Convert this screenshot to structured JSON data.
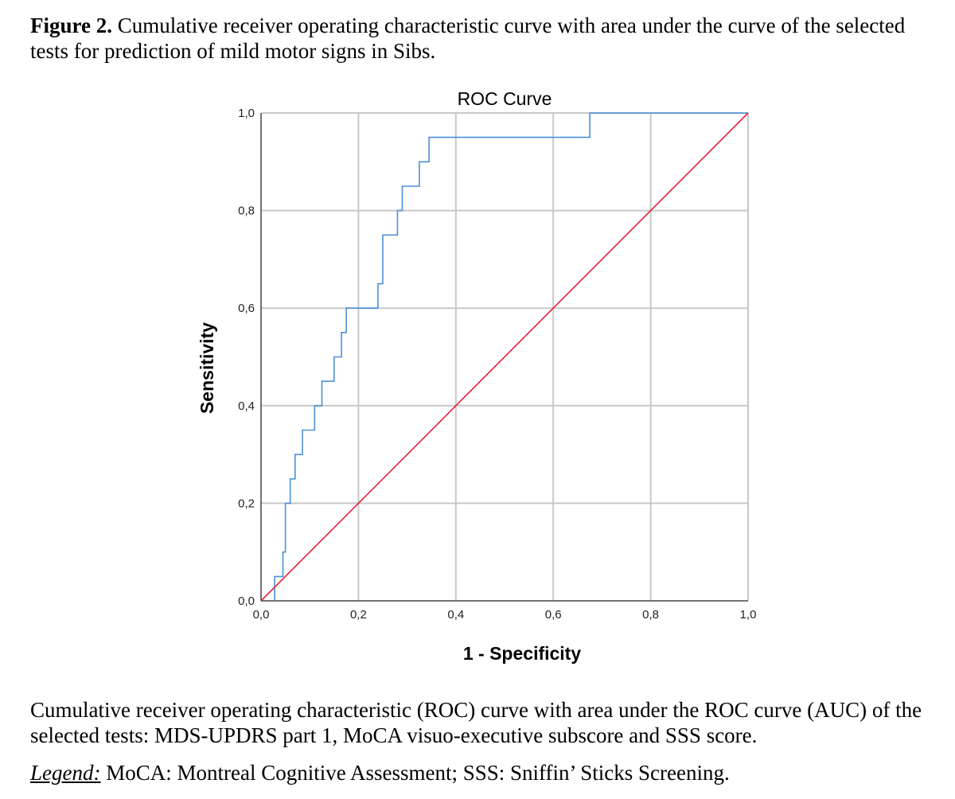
{
  "figure": {
    "label": "Figure 2.",
    "caption": " Cumulative receiver operating characteristic curve with area under the curve of the selected tests for prediction of mild motor signs in Sibs."
  },
  "chart_data": {
    "type": "line",
    "title": "ROC Curve",
    "xlabel": "1 - Specificity",
    "ylabel": "Sensitivity",
    "xlim": [
      0,
      1
    ],
    "ylim": [
      0,
      1
    ],
    "xticks": [
      "0,0",
      "0,2",
      "0,4",
      "0,6",
      "0,8",
      "1,0"
    ],
    "yticks": [
      "0,0",
      "0,2",
      "0,4",
      "0,6",
      "0,8",
      "1,0"
    ],
    "grid": true,
    "series": [
      {
        "color": "#4a90d9",
        "x": [
          0.028,
          0.028,
          0.045,
          0.045,
          0.05,
          0.05,
          0.06,
          0.06,
          0.07,
          0.07,
          0.085,
          0.085,
          0.11,
          0.11,
          0.125,
          0.125,
          0.15,
          0.15,
          0.165,
          0.165,
          0.175,
          0.175,
          0.24,
          0.24,
          0.25,
          0.25,
          0.28,
          0.28,
          0.29,
          0.29,
          0.325,
          0.325,
          0.345,
          0.345,
          0.675,
          0.675,
          1.0
        ],
        "y": [
          0.0,
          0.05,
          0.05,
          0.1,
          0.1,
          0.2,
          0.2,
          0.25,
          0.25,
          0.3,
          0.3,
          0.35,
          0.35,
          0.4,
          0.4,
          0.45,
          0.45,
          0.5,
          0.5,
          0.55,
          0.55,
          0.6,
          0.6,
          0.65,
          0.65,
          0.75,
          0.75,
          0.8,
          0.8,
          0.85,
          0.85,
          0.9,
          0.9,
          0.95,
          0.95,
          1.0,
          1.0
        ]
      },
      {
        "color": "#e0243a",
        "x": [
          0,
          1
        ],
        "y": [
          0,
          1
        ]
      }
    ]
  },
  "notes": {
    "paragraph": "Cumulative receiver operating characteristic (ROC) curve with area under the ROC curve (AUC) of the selected tests: MDS-UPDRS part 1, MoCA visuo-executive subscore and SSS score.",
    "legend_label": "Legend:",
    "legend_text": " MoCA: Montreal Cognitive Assessment; SSS: Sniffin’ Sticks Screening."
  }
}
